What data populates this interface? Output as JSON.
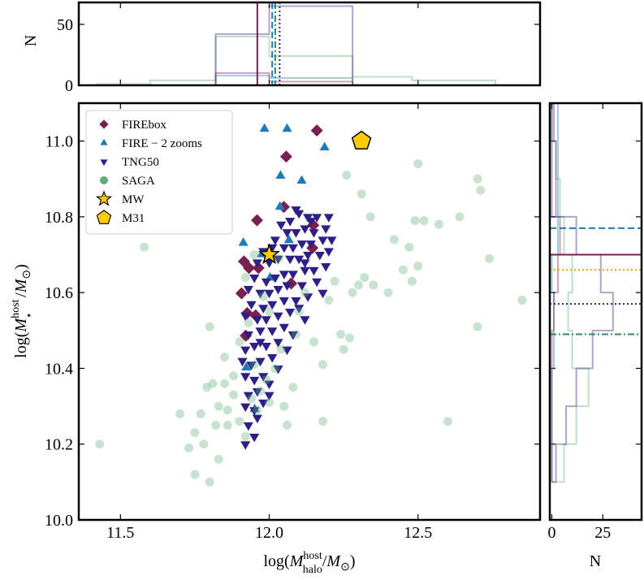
{
  "chart_data": {
    "type": "scatter",
    "xlabel": [
      "log(",
      "M",
      "host",
      "halo",
      "/",
      "M",
      "⊙",
      ")"
    ],
    "ylabel": [
      "log(",
      "M",
      "host",
      "⋆",
      "/",
      "M",
      "⊙",
      ")"
    ],
    "xlim": [
      11.36,
      12.91
    ],
    "ylim": [
      10.0,
      11.1
    ],
    "xticks": [
      11.5,
      {
        "value": 12,
        "label": "12.0"
      },
      12.5
    ],
    "yticks": [
      {
        "value": 10,
        "label": "10.0"
      },
      10.2,
      10.4,
      10.6,
      10.8,
      {
        "value": 11,
        "label": "11.0"
      }
    ],
    "legend": "upper left",
    "series": [
      {
        "name": "FIREbox",
        "color": "#7a1f52",
        "marker": "diamond",
        "x": [
          12.16,
          12.057,
          12.049,
          11.959,
          11.915,
          11.932,
          11.964,
          11.907,
          11.926,
          11.954,
          11.921,
          12.148,
          12.145,
          12.074
        ],
        "y": [
          11.028,
          10.959,
          10.826,
          10.791,
          10.682,
          10.665,
          10.665,
          10.598,
          10.546,
          10.54,
          10.486,
          10.778,
          10.718,
          10.624
        ]
      },
      {
        "name": "FIRE − 2 zooms",
        "color": "#1f7ab8",
        "marker": "triangle-up",
        "x": [
          11.984,
          12.06,
          12.186,
          12.038,
          12.109,
          12.036,
          11.913,
          11.975,
          11.923,
          11.951,
          12.066,
          12.003
        ],
        "y": [
          11.032,
          11.032,
          10.983,
          10.908,
          10.895,
          10.826,
          10.731,
          10.701,
          10.402,
          10.292,
          10.738,
          10.639
        ]
      },
      {
        "name": "TNG50",
        "color": "#2e1f86",
        "marker": "triangle-down",
        "x": [
          12.2,
          12.16,
          12.13,
          12.1,
          12.07,
          12.04,
          12.19,
          12.15,
          12.12,
          12.09,
          12.06,
          12.02,
          12.18,
          12.14,
          12.11,
          12.08,
          12.05,
          12.01,
          11.98,
          12.2,
          12.17,
          12.13,
          12.1,
          12.07,
          12.03,
          12.0,
          11.96,
          12.19,
          12.15,
          12.12,
          12.08,
          12.05,
          12.02,
          11.99,
          11.95,
          12.16,
          12.11,
          12.06,
          12.03,
          12.0,
          11.97,
          11.93,
          12.18,
          12.13,
          12.09,
          12.05,
          12.01,
          11.98,
          11.94,
          12.1,
          12.07,
          12.03,
          11.99,
          11.96,
          11.92,
          12.12,
          12.05,
          12.01,
          11.97,
          11.93,
          12.08,
          12.03,
          11.99,
          11.95,
          11.92,
          12.06,
          12.01,
          11.97,
          11.94,
          11.91,
          12.03,
          11.98,
          11.95,
          11.92,
          12.0,
          11.96,
          11.93,
          11.98,
          11.95,
          11.92,
          11.96,
          11.93,
          11.95,
          11.92,
          12.14,
          12.09,
          12.21,
          11.97,
          12.0,
          12.12
        ],
        "y": [
          10.8,
          10.8,
          10.8,
          10.81,
          10.79,
          10.78,
          10.77,
          10.76,
          10.77,
          10.76,
          10.76,
          10.74,
          10.74,
          10.73,
          10.73,
          10.72,
          10.72,
          10.72,
          10.71,
          10.71,
          10.7,
          10.7,
          10.69,
          10.69,
          10.69,
          10.68,
          10.68,
          10.67,
          10.66,
          10.66,
          10.65,
          10.65,
          10.64,
          10.63,
          10.64,
          10.63,
          10.62,
          10.62,
          10.61,
          10.6,
          10.6,
          10.61,
          10.6,
          10.59,
          10.58,
          10.58,
          10.57,
          10.56,
          10.57,
          10.56,
          10.55,
          10.54,
          10.53,
          10.53,
          10.54,
          10.53,
          10.51,
          10.5,
          10.5,
          10.49,
          10.49,
          10.47,
          10.46,
          10.46,
          10.45,
          10.45,
          10.43,
          10.42,
          10.41,
          10.42,
          10.4,
          10.38,
          10.37,
          10.38,
          10.36,
          10.34,
          10.33,
          10.31,
          10.29,
          10.3,
          10.27,
          10.25,
          10.22,
          10.2,
          10.79,
          10.82,
          10.74,
          10.47,
          10.33,
          10.68
        ]
      },
      {
        "name": "SAGA",
        "color": "#5fae78",
        "marker": "circle",
        "x": [
          11.43,
          11.58,
          11.7,
          11.73,
          11.75,
          11.75,
          11.77,
          11.78,
          11.8,
          11.79,
          11.81,
          11.83,
          11.86,
          11.83,
          11.86,
          11.88,
          11.9,
          11.92,
          11.94,
          11.97,
          11.99,
          12.0,
          11.85,
          11.8,
          11.9,
          11.93,
          11.95,
          12.02,
          12.05,
          12.06,
          12.18,
          12.04,
          12.09,
          12.15,
          12.18,
          12.24,
          12.27,
          12.1,
          12.2,
          12.28,
          12.3,
          12.32,
          12.35,
          12.31,
          12.26,
          12.34,
          12.42,
          12.47,
          12.49,
          12.5,
          12.52,
          12.57,
          12.64,
          12.7,
          12.71,
          12.74,
          12.7,
          12.6,
          12.85,
          12.48,
          12.45,
          12.5,
          12.4,
          12.25,
          11.92,
          11.98,
          12.0,
          11.95,
          12.03,
          12.12,
          12.22,
          11.88,
          11.82,
          11.85,
          11.96,
          12.08
        ],
        "y": [
          10.2,
          10.72,
          10.28,
          10.19,
          10.23,
          10.12,
          10.28,
          10.2,
          10.1,
          10.35,
          10.36,
          10.3,
          10.29,
          10.16,
          10.25,
          10.33,
          10.26,
          10.22,
          10.32,
          10.34,
          10.37,
          10.31,
          10.43,
          10.51,
          10.47,
          10.52,
          10.41,
          10.4,
          10.3,
          10.25,
          10.26,
          10.45,
          10.49,
          10.47,
          10.41,
          10.49,
          10.48,
          10.55,
          10.58,
          10.6,
          10.62,
          10.64,
          10.62,
          10.86,
          10.91,
          10.8,
          10.74,
          10.72,
          10.79,
          10.94,
          10.79,
          10.78,
          10.8,
          10.9,
          10.87,
          10.69,
          10.51,
          10.26,
          10.58,
          10.63,
          10.66,
          10.67,
          10.6,
          10.45,
          10.64,
          10.59,
          10.55,
          10.7,
          10.69,
          10.6,
          10.63,
          10.38,
          10.25,
          10.36,
          10.29,
          10.35
        ]
      },
      {
        "name": "MW",
        "color": "#ffcc00",
        "marker": "star",
        "x": [
          12.0
        ],
        "y": [
          10.7
        ]
      },
      {
        "name": "M31",
        "color": "#ffcc00",
        "marker": "pentagon",
        "x": [
          12.31
        ],
        "y": [
          11.0
        ]
      }
    ],
    "top_panel": {
      "ylabel": "N",
      "ylim": [
        0,
        68
      ],
      "yticks": [
        0,
        50
      ],
      "hists": [
        {
          "color": "#5fae78",
          "bins": [
            11.42,
            11.6,
            11.82,
            12.0,
            12.28,
            12.48,
            12.76
          ],
          "counts": [
            1,
            4,
            40,
            24,
            7,
            4
          ]
        },
        {
          "color": "#2e1f86",
          "bins": [
            11.82,
            12.0,
            12.28
          ],
          "counts": [
            42,
            65
          ]
        },
        {
          "color": "#1f7ab8",
          "bins": [
            11.82,
            12.0,
            12.28
          ],
          "counts": [
            8,
            6
          ]
        },
        {
          "color": "#7a1f52",
          "bins": [
            11.82,
            12.0,
            12.28
          ],
          "counts": [
            10,
            3
          ]
        }
      ],
      "lines": [
        {
          "color": "#7a1f52",
          "dash": "solid",
          "value": 11.96
        },
        {
          "color": "#1f7ab8",
          "dash": "dashed",
          "value": 12.01
        },
        {
          "color": "#2f8a55",
          "dash": "dashdot",
          "value": 12.02
        },
        {
          "color": "#2e1f86",
          "dash": "dotted",
          "value": 12.035
        }
      ]
    },
    "right_panel": {
      "xlabel": "N",
      "xlim": [
        -1,
        44
      ],
      "xticks": [
        0,
        25
      ],
      "hists": [
        {
          "color": "#5fae78",
          "bins": [
            10.1,
            10.2,
            10.3,
            10.4,
            10.5,
            10.6,
            10.7,
            10.8,
            10.9,
            11.0,
            11.1
          ],
          "counts": [
            6,
            12,
            18,
            10,
            8,
            10,
            6,
            4,
            2,
            0
          ]
        },
        {
          "color": "#2e1f86",
          "bins": [
            10.1,
            10.2,
            10.3,
            10.4,
            10.5,
            10.6,
            10.7,
            10.8,
            10.9,
            11.0,
            11.1
          ],
          "counts": [
            2,
            7,
            12,
            20,
            30,
            24,
            12,
            0,
            0,
            0
          ]
        },
        {
          "color": "#1f7ab8",
          "bins": [
            10.1,
            10.2,
            10.3,
            10.4,
            10.5,
            10.6,
            10.7,
            10.8,
            10.9,
            11.0,
            11.1
          ],
          "counts": [
            0,
            0,
            0,
            1,
            1,
            0,
            3,
            3,
            3,
            3
          ]
        },
        {
          "color": "#7a1f52",
          "bins": [
            10.1,
            10.2,
            10.3,
            10.4,
            10.5,
            10.6,
            10.7,
            10.8,
            10.9,
            11.0,
            11.1
          ],
          "counts": [
            0,
            0,
            0,
            0,
            1,
            3,
            4,
            2,
            2,
            1
          ]
        }
      ],
      "lines": [
        {
          "color": "#1f7ab8",
          "dash": "dashed",
          "value": 10.77
        },
        {
          "color": "#7a1f52",
          "dash": "solid",
          "value": 10.7
        },
        {
          "color": "#e0a800",
          "dash": "dotted",
          "value": 10.66
        },
        {
          "color": "#2e1f86",
          "dash": "dotted",
          "value": 10.57
        },
        {
          "color": "#2f8a55",
          "dash": "dashdot",
          "value": 10.49
        }
      ]
    }
  }
}
